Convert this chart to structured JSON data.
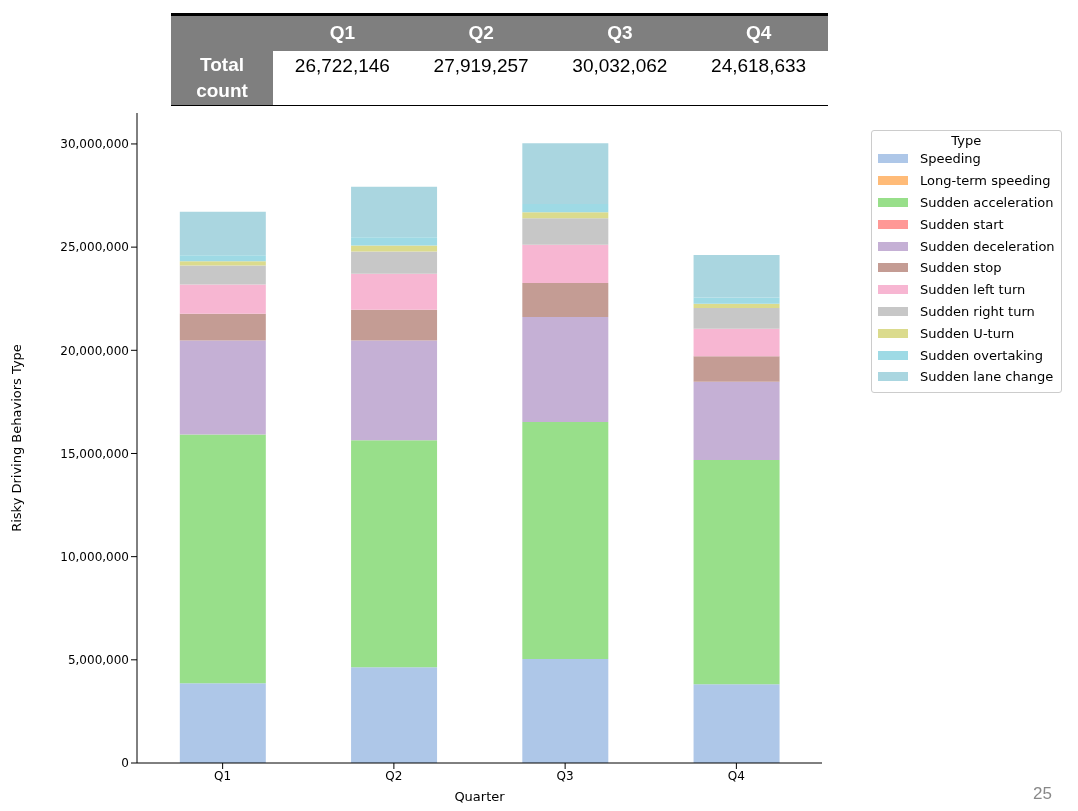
{
  "chart_data": {
    "type": "bar",
    "xlabel": "Quarter",
    "ylabel": "Risky Driving Behaviors Type",
    "legend_title": "Type",
    "categories": [
      "Q1",
      "Q2",
      "Q3",
      "Q4"
    ],
    "stacked": true,
    "ylim": [
      0,
      31500000
    ],
    "yticks": [
      0,
      {
        "value": 5000000,
        "label": "5,000,000"
      },
      {
        "value": 10000000,
        "label": "10,000,000"
      },
      {
        "value": 15000000,
        "label": "15,000,000"
      },
      {
        "value": 20000000,
        "label": "20,000,000"
      },
      {
        "value": 25000000,
        "label": "25,000,000"
      },
      {
        "value": 30000000,
        "label": "30,000,000"
      }
    ],
    "grid": false,
    "legend": "right",
    "annotations": [
      "Total count",
      "26,722,146",
      "27,919,257",
      "30,032,062",
      "24,618,633",
      "25"
    ],
    "series": [
      {
        "name": "Speeding",
        "color": "#aec7e8",
        "values": [
          3860000,
          4640000,
          5040000,
          3820000
        ]
      },
      {
        "name": "Long-term speeding",
        "color": "#ffbb78",
        "values": [
          0,
          0,
          0,
          0
        ]
      },
      {
        "name": "Sudden acceleration",
        "color": "#98df8a",
        "values": [
          12060000,
          11000000,
          11490000,
          10860000
        ]
      },
      {
        "name": "Sudden start",
        "color": "#ff9896",
        "values": [
          0,
          0,
          0,
          0
        ]
      },
      {
        "name": "Sudden deceleration",
        "color": "#c5b0d5",
        "values": [
          4560000,
          4840000,
          5080000,
          3790000
        ]
      },
      {
        "name": "Sudden stop",
        "color": "#c49c94",
        "values": [
          1290000,
          1490000,
          1650000,
          1240000
        ]
      },
      {
        "name": "Sudden left turn",
        "color": "#f7b6d2",
        "values": [
          1420000,
          1740000,
          1850000,
          1340000
        ]
      },
      {
        "name": "Sudden right turn",
        "color": "#c7c7c7",
        "values": [
          920000,
          1080000,
          1290000,
          1000000
        ]
      },
      {
        "name": "Sudden U-turn",
        "color": "#dbdb8d",
        "values": [
          200000,
          290000,
          290000,
          210000
        ]
      },
      {
        "name": "Sudden overtaking",
        "color": "#9edae5",
        "values": [
          300000,
          400000,
          400000,
          300000
        ]
      },
      {
        "name": "Sudden lane change",
        "color": "#aad6e0",
        "values": [
          2110000,
          2440000,
          2940000,
          2060000
        ]
      }
    ]
  }
}
